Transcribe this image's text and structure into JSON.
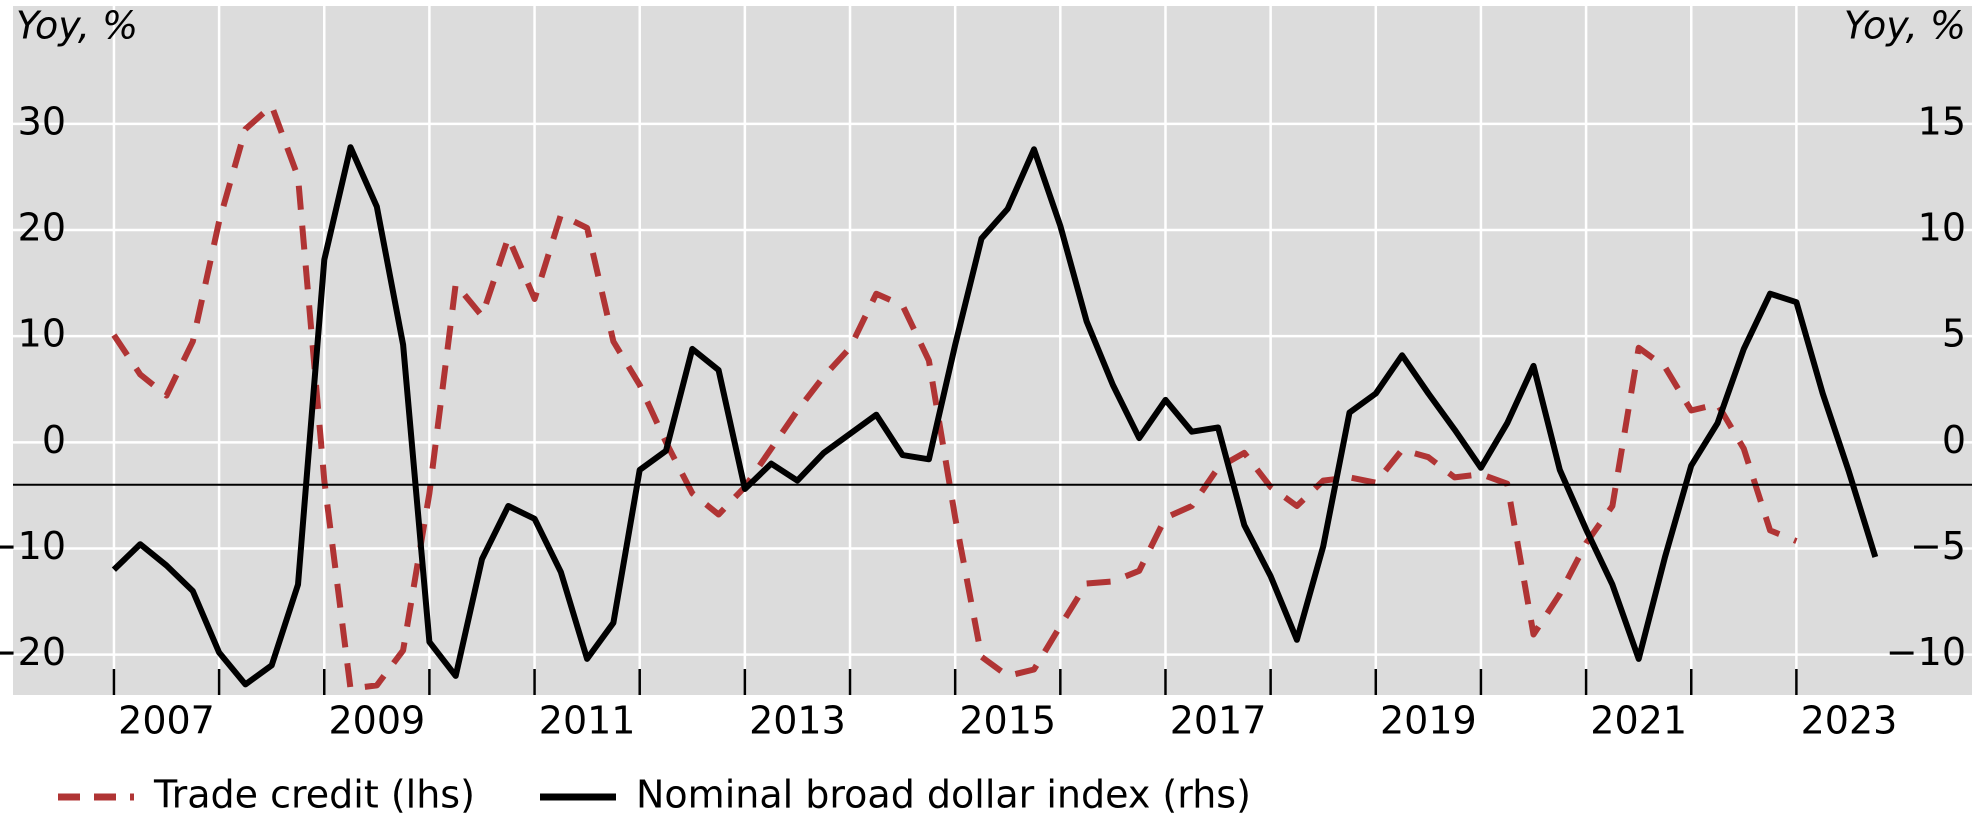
{
  "chart_data": {
    "type": "line",
    "ylabel": "Yoy, %",
    "y2label": "Yoy, %",
    "xlim": [
      2006.04,
      2024.67
    ],
    "xticks": [
      2007,
      2008,
      2009,
      2010,
      2011,
      2012,
      2013,
      2014,
      2015,
      2016,
      2017,
      2018,
      2019,
      2020,
      2021,
      2022,
      2023
    ],
    "ylim": [
      -23.8,
      41.1
    ],
    "yticks": [
      {
        "value": -20,
        "label": "−20"
      },
      {
        "value": -10,
        "label": "−10"
      },
      0,
      10,
      20,
      30
    ],
    "y2lim": [
      -11.9,
      20.55
    ],
    "y2ticks": [
      {
        "value": -10,
        "label": "−10"
      },
      {
        "value": -5,
        "label": "−5"
      },
      0,
      5,
      10,
      15
    ],
    "reference_line": -4,
    "grid": true,
    "legend": "bottom",
    "series": [
      {
        "name": "Trade credit (lhs)",
        "color": "#b03434",
        "dash": true,
        "axis": "y",
        "x": [
          2007,
          2007.25,
          2007.5,
          2007.75,
          2008,
          2008.25,
          2008.5,
          2008.75,
          2009,
          2009.25,
          2009.5,
          2009.75,
          2010,
          2010.25,
          2010.5,
          2010.75,
          2011,
          2011.25,
          2011.5,
          2011.75,
          2012,
          2012.25,
          2012.5,
          2012.75,
          2013,
          2013.25,
          2013.5,
          2013.75,
          2014,
          2014.25,
          2014.5,
          2014.75,
          2015,
          2015.25,
          2015.5,
          2015.75,
          2016,
          2016.25,
          2016.5,
          2016.75,
          2017,
          2017.25,
          2017.5,
          2017.75,
          2018,
          2018.25,
          2018.5,
          2018.75,
          2019,
          2019.25,
          2019.5,
          2019.75,
          2020,
          2020.25,
          2020.5,
          2020.75,
          2021,
          2021.25,
          2021.5,
          2021.75,
          2022,
          2022.25,
          2022.5,
          2022.75,
          2023
        ],
        "values": [
          10.1,
          6.4,
          4.4,
          9.5,
          20.8,
          29.5,
          31.7,
          25,
          -3.6,
          -23.2,
          -22.9,
          -19.6,
          -4.8,
          14.9,
          11.9,
          19.3,
          13.5,
          21.4,
          20.2,
          9.5,
          5.4,
          0,
          -4.8,
          -6.8,
          -4.2,
          -0.6,
          3,
          6.2,
          8.9,
          14,
          12.9,
          7.7,
          -7.1,
          -20.2,
          -22,
          -21.4,
          -17.3,
          -13.3,
          -13.1,
          -12.1,
          -7.1,
          -6,
          -2.4,
          -1,
          -4.2,
          -6,
          -3.6,
          -3.3,
          -3.8,
          -0.7,
          -1.4,
          -3.3,
          -3,
          -3.9,
          -18.1,
          -14.3,
          -9.5,
          -6,
          8.9,
          7.1,
          3,
          3.6,
          -0.6,
          -8.3,
          -9.3
        ]
      },
      {
        "name": "Nominal broad dollar index (rhs)",
        "color": "#000000",
        "dash": false,
        "axis": "y2",
        "x": [
          2007,
          2007.25,
          2007.5,
          2007.75,
          2008,
          2008.25,
          2008.5,
          2008.75,
          2009,
          2009.25,
          2009.5,
          2009.75,
          2010,
          2010.25,
          2010.5,
          2010.75,
          2011,
          2011.25,
          2011.5,
          2011.75,
          2012,
          2012.25,
          2012.5,
          2012.75,
          2013,
          2013.25,
          2013.5,
          2013.75,
          2014,
          2014.25,
          2014.5,
          2014.75,
          2015,
          2015.25,
          2015.5,
          2015.75,
          2016,
          2016.25,
          2016.5,
          2016.75,
          2017,
          2017.25,
          2017.5,
          2017.75,
          2018,
          2018.25,
          2018.5,
          2018.75,
          2019,
          2019.25,
          2019.5,
          2019.75,
          2020,
          2020.25,
          2020.5,
          2020.75,
          2021,
          2021.25,
          2021.5,
          2021.75,
          2022,
          2022.25,
          2022.5,
          2022.75,
          2023,
          2023.25,
          2023.5,
          2023.75
        ],
        "values": [
          -6,
          -4.8,
          -5.8,
          -7,
          -9.9,
          -11.4,
          -10.5,
          -6.7,
          8.6,
          13.9,
          11.1,
          4.6,
          -9.4,
          -11,
          -5.5,
          -3,
          -3.6,
          -6.1,
          -10.2,
          -8.5,
          -1.3,
          -0.4,
          4.4,
          3.4,
          -2.2,
          -1,
          -1.8,
          -0.5,
          0.4,
          1.3,
          -0.6,
          -0.8,
          4.6,
          9.6,
          11,
          13.8,
          10.2,
          5.7,
          2.7,
          0.2,
          2,
          0.5,
          0.7,
          -3.9,
          -6.3,
          -9.3,
          -4.9,
          1.4,
          2.3,
          4.1,
          2.3,
          0.6,
          -1.2,
          0.9,
          3.6,
          -1.3,
          -4.1,
          -6.7,
          -10.2,
          -5.4,
          -1.1,
          0.9,
          4.4,
          7,
          6.6,
          2.3,
          -1.4,
          -5.4
        ]
      }
    ]
  }
}
